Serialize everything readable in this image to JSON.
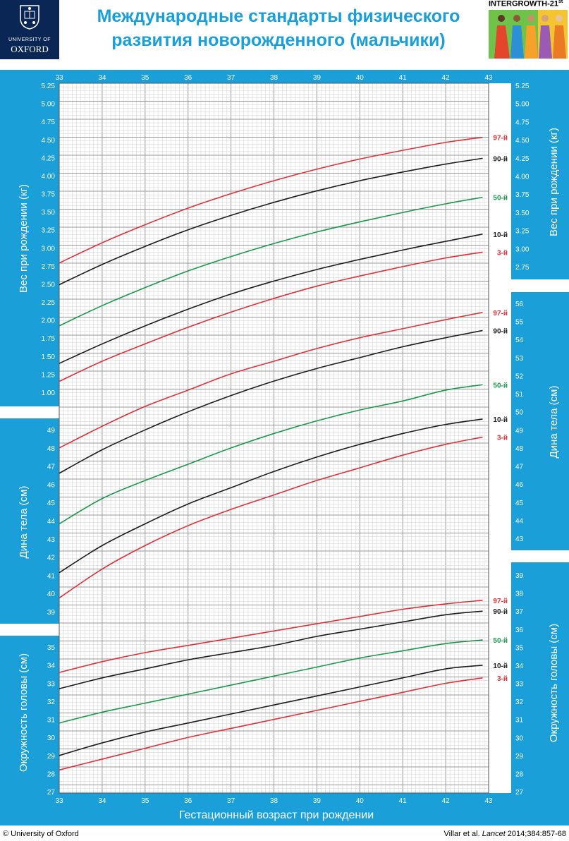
{
  "header": {
    "title_line1": "Международные стандарты  физического",
    "title_line2": "развития новорожденного (мальчики)",
    "logo_line1": "UNIVERSITY OF",
    "logo_line2": "OXFORD",
    "program_name": "INTERGROWTH-21",
    "program_superscript": "st"
  },
  "footer": {
    "left": "© University of Oxford",
    "right_prefix": "Villar et al. ",
    "right_journal": "Lancet",
    "right_suffix": " 2014;384:857-68"
  },
  "colors": {
    "blue": "#1a9fd9",
    "red": "#e0313a",
    "green": "#1a9a4a",
    "black": "#1d1d1d",
    "navy": "#0a2654"
  },
  "chart_data": {
    "type": "line",
    "xlabel": "Гестационный возраст при рождении",
    "x_ticks": [
      "33",
      "34",
      "35",
      "36",
      "37",
      "38",
      "39",
      "40",
      "41",
      "42",
      "43"
    ],
    "xlim": [
      33,
      43
    ],
    "x": [
      33,
      34,
      35,
      36,
      37,
      38,
      39,
      40,
      41,
      42,
      42.86
    ],
    "panels": [
      {
        "id": "weight",
        "ylabel": "Вес при рождении (кг)",
        "ylim": [
          0.75,
          5.25
        ],
        "left_ticks": [
          "5.25",
          "5.00",
          "4.75",
          "4.50",
          "4.25",
          "4.00",
          "3.75",
          "3.50",
          "3.25",
          "3.00",
          "2.75",
          "2.50",
          "2.25",
          "2.00",
          "1.75",
          "1.50",
          "1.25",
          "1.00"
        ],
        "right_ticks": [
          "5.25",
          "5.00",
          "4.75",
          "4.50",
          "4.25",
          "4.00",
          "3.75",
          "3.50",
          "3.25",
          "3.00",
          "2.75"
        ],
        "series": [
          {
            "name": "97-й",
            "color": "red",
            "values": [
              2.79,
              3.07,
              3.32,
              3.55,
              3.75,
              3.93,
              4.09,
              4.23,
              4.35,
              4.46,
              4.53
            ]
          },
          {
            "name": "90-й",
            "color": "black",
            "values": [
              2.49,
              2.77,
              3.02,
              3.25,
              3.45,
              3.63,
              3.79,
              3.93,
              4.05,
              4.16,
              4.24
            ]
          },
          {
            "name": "50-й",
            "color": "green",
            "values": [
              1.92,
              2.2,
              2.45,
              2.68,
              2.88,
              3.06,
              3.22,
              3.36,
              3.49,
              3.61,
              3.7
            ]
          },
          {
            "name": "10-й",
            "color": "black",
            "values": [
              1.4,
              1.67,
              1.92,
              2.15,
              2.36,
              2.54,
              2.7,
              2.84,
              2.97,
              3.09,
              3.19
            ]
          },
          {
            "name": "3-й",
            "color": "red",
            "values": [
              1.15,
              1.43,
              1.67,
              1.9,
              2.11,
              2.3,
              2.47,
              2.61,
              2.74,
              2.86,
              2.94
            ]
          }
        ]
      },
      {
        "id": "length",
        "ylabel": "Дина тела (см)",
        "ylim": [
          38,
          57
        ],
        "left_ticks": [
          "49",
          "48",
          "47",
          "46",
          "45",
          "44",
          "43",
          "42",
          "41",
          "40",
          "39"
        ],
        "right_ticks": [
          "56",
          "55",
          "54",
          "53",
          "52",
          "51",
          "50",
          "49",
          "48",
          "47",
          "46",
          "45",
          "44",
          "43"
        ],
        "series": [
          {
            "name": "97-й",
            "color": "red",
            "values": [
              48.0,
              49.2,
              50.3,
              51.2,
              52.1,
              52.8,
              53.5,
              54.1,
              54.6,
              55.1,
              55.5
            ]
          },
          {
            "name": "90-й",
            "color": "black",
            "values": [
              46.6,
              47.9,
              49.0,
              50.0,
              50.9,
              51.7,
              52.4,
              53.0,
              53.6,
              54.1,
              54.5
            ]
          },
          {
            "name": "50-й",
            "color": "green",
            "values": [
              43.8,
              45.2,
              46.2,
              47.1,
              48.0,
              48.8,
              49.5,
              50.1,
              50.6,
              51.2,
              51.5
            ]
          },
          {
            "name": "10-й",
            "color": "black",
            "values": [
              41.1,
              42.6,
              43.8,
              44.9,
              45.8,
              46.7,
              47.5,
              48.2,
              48.8,
              49.3,
              49.6
            ]
          },
          {
            "name": "3-й",
            "color": "red",
            "values": [
              39.7,
              41.3,
              42.6,
              43.7,
              44.6,
              45.4,
              46.2,
              46.9,
              47.6,
              48.2,
              48.6
            ]
          }
        ]
      },
      {
        "id": "head",
        "ylabel": "Окружность головы (см)",
        "ylim": [
          27,
          39.5
        ],
        "left_ticks": [
          "35",
          "34",
          "33",
          "32",
          "31",
          "30",
          "29",
          "28",
          "27"
        ],
        "right_ticks": [
          "39",
          "38",
          "37",
          "36",
          "35",
          "34",
          "33",
          "32",
          "31",
          "30",
          "29",
          "28",
          "27"
        ],
        "series": [
          {
            "name": "97-й",
            "color": "red",
            "values": [
              33.6,
              34.2,
              34.7,
              35.1,
              35.5,
              35.9,
              36.3,
              36.7,
              37.1,
              37.4,
              37.6
            ]
          },
          {
            "name": "90-й",
            "color": "black",
            "values": [
              32.7,
              33.3,
              33.8,
              34.3,
              34.7,
              35.1,
              35.6,
              36.0,
              36.4,
              36.8,
              37.0
            ]
          },
          {
            "name": "50-й",
            "color": "green",
            "values": [
              30.8,
              31.4,
              31.9,
              32.4,
              32.9,
              33.4,
              33.9,
              34.4,
              34.8,
              35.2,
              35.4
            ]
          },
          {
            "name": "10-й",
            "color": "black",
            "values": [
              29.0,
              29.7,
              30.3,
              30.8,
              31.3,
              31.8,
              32.3,
              32.8,
              33.3,
              33.8,
              34.0
            ]
          },
          {
            "name": "3-й",
            "color": "red",
            "values": [
              28.2,
              28.8,
              29.4,
              30.0,
              30.5,
              31.0,
              31.5,
              32.0,
              32.5,
              33.0,
              33.3
            ]
          }
        ]
      }
    ]
  }
}
